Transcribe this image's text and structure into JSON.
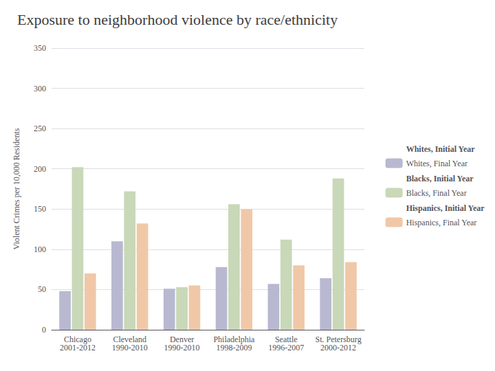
{
  "chart_data": {
    "type": "bar",
    "title": "Exposure to neighborhood violence by race/ethnicity",
    "ylabel": "Violent Crimes per 10,000 Residents",
    "categories": [
      "Chicago\n2001-2012",
      "Cleveland\n1990-2010",
      "Denver\n1990-2010",
      "Philadelphia\n1998-2009",
      "Seattle\n1996-2007",
      "St. Petersburg\n2000-2012"
    ],
    "series": [
      {
        "name": "Whites, Initial Year",
        "values": [
          null,
          null,
          null,
          null,
          null,
          null
        ]
      },
      {
        "name": "Whites, Final Year",
        "color": "#b8b8d0",
        "values": [
          48,
          110,
          51,
          78,
          57,
          64
        ]
      },
      {
        "name": "Blacks, Initial Year",
        "values": [
          null,
          null,
          null,
          null,
          null,
          null
        ]
      },
      {
        "name": "Blacks, Final Year",
        "color": "#c8d8b8",
        "values": [
          202,
          172,
          53,
          156,
          112,
          188
        ]
      },
      {
        "name": "Hispanics, Initial Year",
        "values": [
          null,
          null,
          null,
          null,
          null,
          null
        ]
      },
      {
        "name": "Hispanics, Final Year",
        "color": "#f0c8a8",
        "values": [
          70,
          132,
          55,
          150,
          80,
          84
        ]
      }
    ],
    "ylim": [
      0,
      350
    ],
    "yticks": [
      0,
      50,
      100,
      150,
      200,
      250,
      300,
      350
    ],
    "grid": true,
    "legend": "right"
  }
}
